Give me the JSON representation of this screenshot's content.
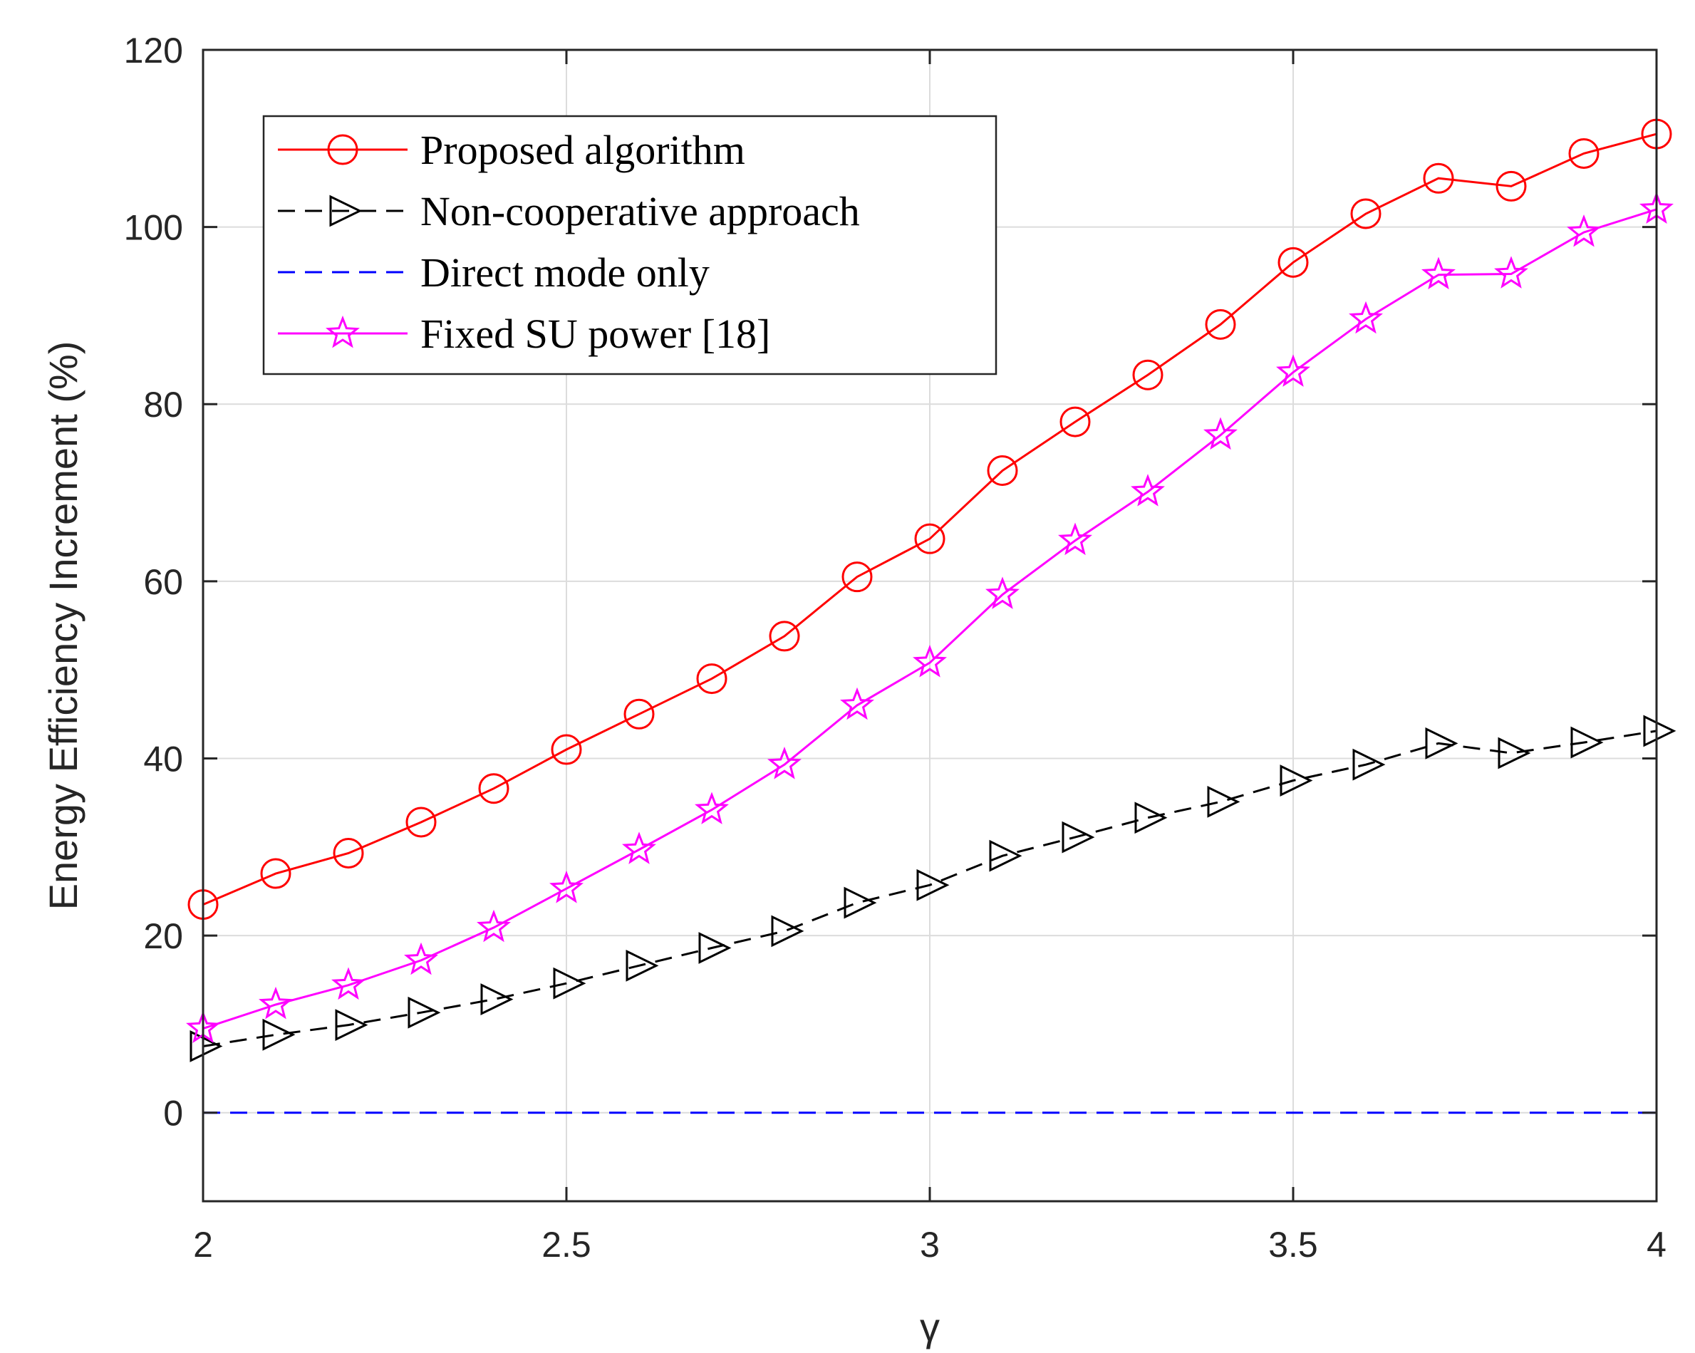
{
  "chart_data": {
    "type": "line",
    "title": "",
    "xlabel": "γ",
    "ylabel": "Energy Efficiency Increment (%)",
    "xlim": [
      2,
      4
    ],
    "ylim": [
      -10,
      120
    ],
    "xticks": [
      2,
      2.5,
      3,
      3.5,
      4
    ],
    "xtick_labels": [
      "2",
      "2.5",
      "3",
      "3.5",
      "4"
    ],
    "yticks": [
      0,
      20,
      40,
      60,
      80,
      100,
      120
    ],
    "ytick_labels": [
      "0",
      "20",
      "40",
      "60",
      "80",
      "100",
      "120"
    ],
    "grid": true,
    "legend_position": "top-left",
    "x": [
      2.0,
      2.1,
      2.2,
      2.3,
      2.4,
      2.5,
      2.6,
      2.7,
      2.8,
      2.9,
      3.0,
      3.1,
      3.2,
      3.3,
      3.4,
      3.5,
      3.6,
      3.7,
      3.8,
      3.9,
      4.0
    ],
    "series": [
      {
        "name": "Proposed algorithm",
        "color": "#ff0000",
        "line_style": "solid",
        "marker": "circle",
        "values": [
          23.5,
          27.0,
          29.3,
          32.8,
          36.6,
          41.0,
          45.0,
          49.0,
          53.8,
          60.5,
          64.8,
          72.5,
          78.0,
          83.3,
          89.0,
          96.0,
          101.5,
          105.5,
          104.6,
          108.3,
          110.5
        ]
      },
      {
        "name": "Non-cooperative approach",
        "color": "#000000",
        "line_style": "dashed",
        "marker": "triangle-right",
        "values": [
          7.5,
          8.8,
          9.9,
          11.3,
          12.8,
          14.6,
          16.6,
          18.6,
          20.5,
          23.7,
          25.7,
          29.0,
          31.1,
          33.3,
          35.1,
          37.5,
          39.3,
          41.7,
          40.6,
          41.8,
          43.1
        ]
      },
      {
        "name": "Direct mode only",
        "color": "#0000ff",
        "line_style": "dashed",
        "marker": "none",
        "values": [
          0,
          0,
          0,
          0,
          0,
          0,
          0,
          0,
          0,
          0,
          0,
          0,
          0,
          0,
          0,
          0,
          0,
          0,
          0,
          0,
          0
        ]
      },
      {
        "name": "Fixed SU power [18]",
        "color": "#ff00ff",
        "line_style": "solid",
        "marker": "star",
        "values": [
          9.5,
          12.2,
          14.4,
          17.2,
          20.9,
          25.3,
          29.7,
          34.2,
          39.3,
          46.0,
          50.8,
          58.5,
          64.6,
          70.1,
          76.5,
          83.6,
          89.6,
          94.6,
          94.7,
          99.4,
          102.0
        ]
      }
    ]
  }
}
